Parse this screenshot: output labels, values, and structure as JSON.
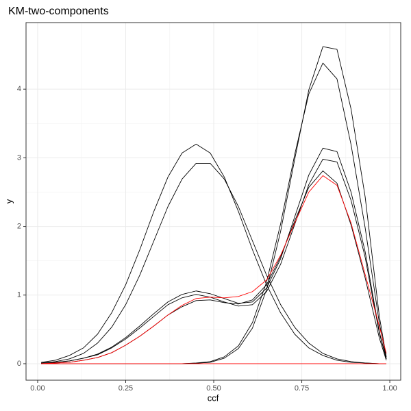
{
  "chart_data": {
    "type": "line",
    "title": "KM-two-components",
    "x_label": "ccf",
    "y_label": "y",
    "x": [
      0.01,
      0.05,
      0.09,
      0.13,
      0.17,
      0.21,
      0.25,
      0.29,
      0.33,
      0.37,
      0.41,
      0.45,
      0.49,
      0.53,
      0.57,
      0.61,
      0.65,
      0.69,
      0.73,
      0.77,
      0.81,
      0.85,
      0.89,
      0.93,
      0.97,
      0.99
    ],
    "series": [
      {
        "color": "#000000",
        "values": [
          0.02,
          0.05,
          0.12,
          0.23,
          0.43,
          0.74,
          1.15,
          1.66,
          2.22,
          2.72,
          3.07,
          3.2,
          3.07,
          2.72,
          2.22,
          1.66,
          1.15,
          0.74,
          0.43,
          0.23,
          0.12,
          0.05,
          0.02,
          0.01,
          0,
          0
        ]
      },
      {
        "color": "#000000",
        "values": [
          0.01,
          0.03,
          0.07,
          0.15,
          0.3,
          0.53,
          0.86,
          1.29,
          1.79,
          2.29,
          2.69,
          2.92,
          2.92,
          2.69,
          2.29,
          1.79,
          1.29,
          0.86,
          0.53,
          0.3,
          0.15,
          0.07,
          0.03,
          0.01,
          0,
          0
        ]
      },
      {
        "color": "#000000",
        "values": [
          0,
          0,
          0,
          0,
          0,
          0,
          0,
          0,
          0,
          0,
          0,
          0.007,
          0.02,
          0.08,
          0.22,
          0.52,
          1.08,
          1.93,
          2.98,
          3.99,
          4.62,
          4.58,
          3.71,
          2.43,
          0.7,
          0.1
        ]
      },
      {
        "color": "#000000",
        "values": [
          0,
          0,
          0,
          0,
          0,
          0,
          0,
          0,
          0,
          0,
          0,
          0.01,
          0.03,
          0.1,
          0.26,
          0.6,
          1.19,
          2.04,
          3.05,
          3.93,
          4.38,
          4.15,
          3.19,
          1.98,
          0.6,
          0.08
        ]
      },
      {
        "color": "#000000",
        "values": [
          0.01,
          0.02,
          0.04,
          0.08,
          0.14,
          0.24,
          0.38,
          0.55,
          0.73,
          0.9,
          1.01,
          1.06,
          1.02,
          0.95,
          0.88,
          0.9,
          1.1,
          1.53,
          2.14,
          2.75,
          3.14,
          3.09,
          2.5,
          1.63,
          0.47,
          0.07
        ]
      },
      {
        "color": "#000000",
        "values": [
          0.01,
          0.02,
          0.04,
          0.08,
          0.13,
          0.23,
          0.36,
          0.52,
          0.69,
          0.86,
          0.96,
          1.01,
          0.97,
          0.9,
          0.84,
          0.86,
          1.05,
          1.45,
          2.03,
          2.61,
          2.98,
          2.94,
          2.38,
          1.55,
          0.45,
          0.07
        ]
      },
      {
        "color": "#000000",
        "values": [
          0,
          0.01,
          0.02,
          0.05,
          0.09,
          0.16,
          0.27,
          0.4,
          0.55,
          0.71,
          0.83,
          0.92,
          0.93,
          0.89,
          0.87,
          0.93,
          1.15,
          1.56,
          2.08,
          2.57,
          2.81,
          2.63,
          2.02,
          1.25,
          0.38,
          0.05
        ]
      },
      {
        "color": "#ff0000",
        "values": [
          0,
          0.01,
          0.02,
          0.05,
          0.09,
          0.16,
          0.27,
          0.4,
          0.55,
          0.71,
          0.85,
          0.95,
          0.97,
          0.96,
          0.98,
          1.05,
          1.22,
          1.58,
          2.05,
          2.5,
          2.74,
          2.6,
          2.05,
          1.3,
          0.55,
          0.15
        ]
      },
      {
        "color": "#ff0000",
        "values": [
          0,
          0,
          0,
          0,
          0,
          0,
          0,
          0,
          0,
          0,
          0,
          0,
          0,
          0,
          0,
          0,
          0,
          0,
          0,
          0,
          0,
          0,
          0,
          0,
          0,
          0
        ]
      }
    ],
    "xlim": [
      -0.033,
      1.031
    ],
    "ylim": [
      -0.24,
      4.97
    ],
    "xticks": [
      {
        "value": 0,
        "label": "0.00"
      },
      {
        "value": 0.25,
        "label": "0.25"
      },
      {
        "value": 0.5,
        "label": "0.50"
      },
      {
        "value": 0.75,
        "label": "0.75"
      },
      {
        "value": 1,
        "label": "1.00"
      }
    ],
    "yticks": [
      0,
      1,
      2,
      3,
      4
    ],
    "grid": true
  }
}
